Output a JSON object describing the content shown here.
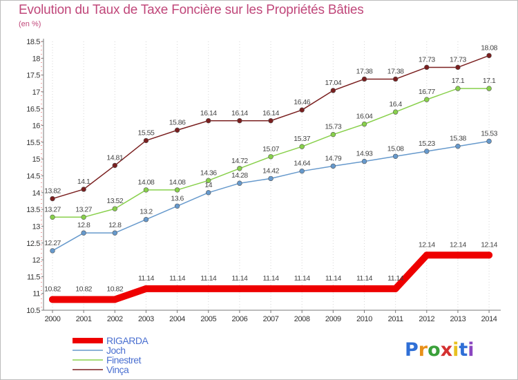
{
  "title": "Evolution du Taux de Taxe Foncière sur les Propriétés Bâties",
  "unit": "(en %)",
  "logo_text": "Proxiti",
  "chart_data": {
    "type": "line",
    "title": "Evolution du Taux de Taxe Foncière sur les Propriétés Bâties",
    "ylabel": "(en %)",
    "xlabel": "",
    "ylim": [
      10.5,
      18.5
    ],
    "yticks": [
      "10.5",
      "11",
      "11.5",
      "12",
      "12.5",
      "13",
      "13.5",
      "14",
      "14.5",
      "15",
      "15.5",
      "16",
      "16.5",
      "17",
      "17.5",
      "18",
      "18.5"
    ],
    "x": [
      "2000",
      "2001",
      "2002",
      "2003",
      "2004",
      "2005",
      "2006",
      "2007",
      "2008",
      "2009",
      "2010",
      "2011",
      "2012",
      "2013",
      "2014"
    ],
    "grid": "vertical dotted",
    "legend_position": "bottom-left",
    "series": [
      {
        "name": "Vinça",
        "color": "#7a1f1f",
        "values": [
          13.82,
          14.1,
          14.81,
          15.55,
          15.86,
          16.14,
          16.14,
          16.14,
          16.46,
          17.04,
          17.38,
          17.38,
          17.73,
          17.73,
          18.08
        ],
        "labels": [
          "13.82",
          "14.1",
          "14.81",
          "15.55",
          "15.86",
          "16.14",
          "16.14",
          "16.14",
          "16.46",
          "17.04",
          "17.38",
          "17.38",
          "17.73",
          "17.73",
          "18.08"
        ]
      },
      {
        "name": "Finestret",
        "color": "#88d04b",
        "values": [
          13.27,
          13.27,
          13.52,
          14.08,
          14.08,
          14.36,
          14.72,
          15.07,
          15.37,
          15.73,
          16.04,
          16.4,
          16.77,
          17.1,
          17.1
        ],
        "labels": [
          "13.27",
          "13.27",
          "13.52",
          "14.08",
          "14.08",
          "14.36",
          "14.72",
          "15.07",
          "15.37",
          "15.73",
          "16.04",
          "16.4",
          "16.77",
          "17.1",
          "17.1"
        ]
      },
      {
        "name": "Joch",
        "color": "#6699cc",
        "values": [
          12.27,
          12.8,
          12.8,
          13.2,
          13.6,
          14,
          14.28,
          14.42,
          14.64,
          14.79,
          14.93,
          15.08,
          15.23,
          15.38,
          15.53
        ],
        "labels": [
          "12.27",
          "12.8",
          "12.8",
          "13.2",
          "13.6",
          "14",
          "14.28",
          "14.42",
          "14.64",
          "14.79",
          "14.93",
          "15.08",
          "15.23",
          "15.38",
          "15.53"
        ]
      },
      {
        "name": "RIGARDA",
        "color": "#ee0000",
        "values": [
          10.82,
          10.82,
          10.82,
          11.14,
          11.14,
          11.14,
          11.14,
          11.14,
          11.14,
          11.14,
          11.14,
          11.14,
          12.14,
          12.14,
          12.14
        ],
        "labels": [
          "10.82",
          "10.82",
          "10.82",
          "11.14",
          "11.14",
          "11.14",
          "11.14",
          "11.14",
          "11.14",
          "11.14",
          "11.14",
          "11.14",
          "12.14",
          "12.14",
          "12.14"
        ]
      }
    ],
    "legend": [
      {
        "name": "RIGARDA",
        "color": "#ee0000",
        "thick": true
      },
      {
        "name": "Joch",
        "color": "#6699cc",
        "thick": false
      },
      {
        "name": "Finestret",
        "color": "#88d04b",
        "thick": false
      },
      {
        "name": "Vinça",
        "color": "#7a1f1f",
        "thick": false
      }
    ]
  }
}
